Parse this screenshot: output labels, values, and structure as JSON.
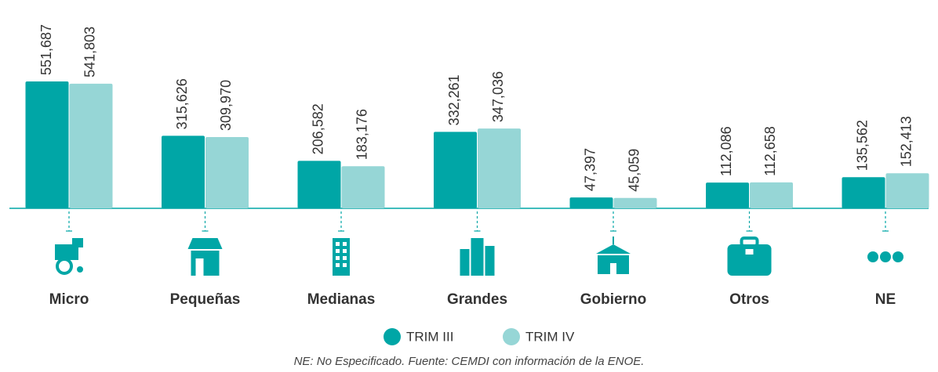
{
  "chart_data": {
    "type": "bar",
    "categories": [
      "Micro",
      "Pequeñas",
      "Medianas",
      "Grandes",
      "Gobierno",
      "Otros",
      "NE"
    ],
    "series": [
      {
        "name": "TRIM III",
        "color": "#00a6a6",
        "values": [
          551687,
          315626,
          206582,
          332261,
          47397,
          112086,
          135562
        ],
        "value_labels": [
          "551,687",
          "315,626",
          "206,582",
          "332,261",
          "47,397",
          "112,086",
          "135,562"
        ]
      },
      {
        "name": "TRIM IV",
        "color": "#96d6d6",
        "values": [
          541803,
          309970,
          183176,
          347036,
          45059,
          112658,
          152413
        ],
        "value_labels": [
          "541,803",
          "309,970",
          "183,176",
          "347,036",
          "45,059",
          "112,658",
          "152,413"
        ]
      }
    ],
    "note": "NE: No Especificado. Fuente: CEMDI con información de la ENOE."
  }
}
